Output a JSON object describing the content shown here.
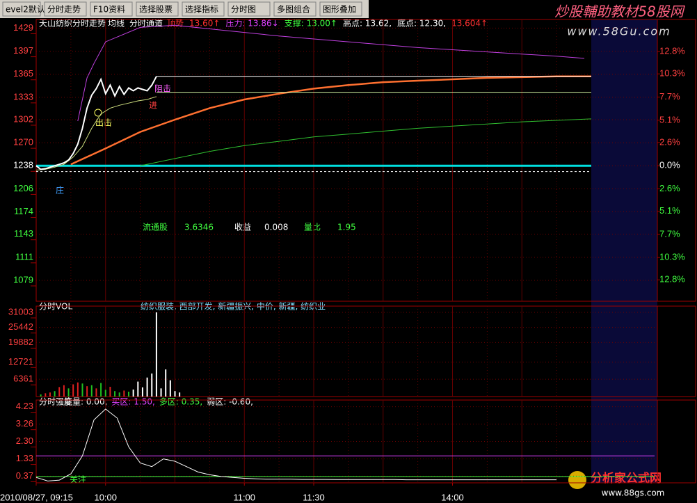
{
  "toolbar": [
    "evel2默认",
    "分时走势",
    "F10资料",
    "选择股票",
    "选择指标",
    "分时图",
    "多图组合",
    "图形叠加"
  ],
  "watermark_top": {
    "title": "炒股輔助教材58股网",
    "url": "www.58Gu.com"
  },
  "watermark_bottom": {
    "title": "分析家公式网",
    "url": "www.88gs.com"
  },
  "info": [
    "流通股",
    "3.6346",
    "收益",
    "0.008",
    "量比",
    "1.95"
  ],
  "annotations": [
    "庄",
    "出击",
    "阻击",
    "进",
    "关注"
  ],
  "chart_data": [
    {
      "type": "line",
      "title": "天山纺织分时走势",
      "legend": [
        "均线",
        "分时通道"
      ],
      "stats": [
        {
          "text": "顶势",
          "color": "#ff3030"
        },
        {
          "text": "13.60↑",
          "color": "#ff3030"
        },
        {
          "text": "压力: 13.86↓",
          "color": "#e040ff"
        },
        {
          "text": "支撑: 13.00↑",
          "color": "#40ff40"
        },
        {
          "text": "高点: 13.62,",
          "color": "#ffffff"
        },
        {
          "text": "底点: 12.30,",
          "color": "#ffffff"
        },
        {
          "text": "13.604↑",
          "color": "#ff3030"
        }
      ],
      "xlim": [
        0,
        240
      ],
      "ylim": [
        1050,
        1441
      ],
      "yticks": [
        1429,
        1397,
        1365,
        1333,
        1302,
        1270,
        1238,
        1206,
        1174,
        1143,
        1111,
        1079
      ],
      "y2lim": [
        -15.2,
        16.4
      ],
      "y2ticks": [
        {
          "value": 12.8,
          "label": "12.8%"
        },
        {
          "value": 10.3,
          "label": "10.3%"
        },
        {
          "value": 7.7,
          "label": "7.7%"
        },
        {
          "value": 5.1,
          "label": "5.1%"
        },
        {
          "value": 2.6,
          "label": "2.6%"
        },
        {
          "value": 0,
          "label": "0.0%"
        },
        {
          "value": -2.6,
          "label": "2.6%"
        },
        {
          "value": -5.1,
          "label": "5.1%"
        },
        {
          "value": -7.7,
          "label": "7.7%"
        },
        {
          "value": -10.3,
          "label": "10.3%"
        },
        {
          "value": -12.8,
          "label": "12.8%"
        }
      ],
      "series": [
        {
          "color": "#00e0e0",
          "width": 3,
          "x": [
            0,
            240
          ],
          "values": [
            1238,
            1238
          ]
        },
        {
          "color": "#ffffff",
          "dash": true,
          "x": [
            0,
            240
          ],
          "values": [
            1230,
            1230
          ]
        },
        {
          "color": "#c040e0",
          "x": [
            18,
            22,
            25,
            30,
            45,
            60,
            75,
            90,
            105,
            120,
            135,
            150,
            165,
            180,
            195,
            210,
            225,
            237
          ],
          "values": [
            1300,
            1360,
            1380,
            1410,
            1430,
            1433,
            1428,
            1423,
            1418,
            1414,
            1410,
            1406,
            1402,
            1399,
            1396,
            1393,
            1390,
            1387
          ]
        },
        {
          "color": "#ff7030",
          "width": 2.5,
          "x": [
            15,
            30,
            45,
            60,
            75,
            90,
            105,
            120,
            135,
            150,
            165,
            180,
            195,
            210,
            225,
            240
          ],
          "values": [
            1240,
            1262,
            1285,
            1302,
            1318,
            1330,
            1338,
            1345,
            1350,
            1354,
            1356,
            1358,
            1360,
            1361,
            1362,
            1362
          ]
        },
        {
          "color": "#30c030",
          "x": [
            45,
            60,
            75,
            90,
            105,
            120,
            135,
            150,
            165,
            180,
            195,
            210,
            225,
            240
          ],
          "values": [
            1238,
            1248,
            1258,
            1266,
            1272,
            1278,
            1282,
            1286,
            1290,
            1293,
            1296,
            1299,
            1301,
            1303
          ]
        },
        {
          "color": "#ffffff",
          "x": [
            52,
            240
          ],
          "values": [
            1362,
            1362
          ]
        },
        {
          "color": "#d0f0a0",
          "x": [
            52,
            240
          ],
          "values": [
            1340,
            1340
          ]
        },
        {
          "color": "#d0e080",
          "x": [
            0,
            4,
            8,
            12,
            16,
            20,
            24,
            28,
            32,
            36,
            40,
            44,
            48,
            52
          ],
          "values": [
            1232,
            1233,
            1236,
            1240,
            1250,
            1265,
            1290,
            1310,
            1318,
            1322,
            1325,
            1328,
            1330,
            1334
          ]
        },
        {
          "color": "#ffffff",
          "width": 2,
          "x": [
            0,
            2,
            4,
            6,
            8,
            10,
            12,
            14,
            16,
            18,
            20,
            22,
            24,
            26,
            28,
            30,
            32,
            34,
            36,
            38,
            40,
            42,
            44,
            46,
            48,
            50,
            52
          ],
          "values": [
            1238,
            1233,
            1234,
            1236,
            1238,
            1240,
            1242,
            1246,
            1255,
            1268,
            1290,
            1318,
            1336,
            1345,
            1358,
            1338,
            1350,
            1335,
            1348,
            1337,
            1346,
            1342,
            1346,
            1344,
            1342,
            1350,
            1362
          ]
        }
      ]
    },
    {
      "type": "bar",
      "title": "分时VOL",
      "note": "纺织服装, 西部开发, 新疆振兴, 中价, 新疆, 纺织业",
      "xlim": [
        0,
        240
      ],
      "ylim": [
        0,
        33300
      ],
      "yticks": [
        31003,
        25442,
        19882,
        12721,
        6361
      ],
      "x": [
        0,
        2,
        4,
        6,
        8,
        10,
        12,
        14,
        16,
        18,
        20,
        22,
        24,
        26,
        28,
        30,
        32,
        34,
        36,
        38,
        40,
        42,
        44,
        46,
        48,
        50,
        52,
        54,
        56,
        58,
        60,
        62
      ],
      "values": [
        0,
        800,
        1200,
        1500,
        2000,
        3500,
        4200,
        3000,
        4500,
        5200,
        4800,
        3800,
        4200,
        3000,
        5000,
        2500,
        3600,
        2000,
        1500,
        2200,
        1800,
        2600,
        5500,
        3400,
        7000,
        8500,
        31000,
        3000,
        10000,
        6000,
        2000,
        1500
      ],
      "bar_colors": [
        "#e02020",
        "#20c020",
        "#e02020",
        "#e02020",
        "#20c020",
        "#e02020",
        "#e02020",
        "#20c020",
        "#e02020",
        "#e02020",
        "#20c020",
        "#e02020",
        "#20c020",
        "#e02020",
        "#20c020",
        "#20c020",
        "#e02020",
        "#20c020",
        "#20c020",
        "#e02020",
        "#20c020",
        "#ffffff",
        "#ffffff",
        "#ffffff",
        "#ffffff",
        "#ffffff",
        "#ffffff",
        "#ffffff",
        "#ffffff",
        "#ffffff",
        "#ffffff",
        "#ffffff"
      ]
    },
    {
      "type": "line",
      "title": "分时强度",
      "indicators": [
        {
          "text": "能量: 0.00,",
          "color": "#ffffff"
        },
        {
          "text": "买区: 1.50,",
          "color": "#e040ff",
          "value": 1.5
        },
        {
          "text": "多区: 0.35,",
          "color": "#40ff40",
          "value": 0.35
        },
        {
          "text": "弱区: -0.60,",
          "color": "#ffffff"
        }
      ],
      "xlim": [
        0,
        240
      ],
      "ylim": [
        0,
        4.6
      ],
      "yticks": [
        {
          "value": 4.23,
          "label": "4.23"
        },
        {
          "value": 3.26,
          "label": "3.26"
        },
        {
          "value": 2.3,
          "label": "2.30"
        },
        {
          "value": 1.33,
          "label": "1.33"
        },
        {
          "value": 0.37,
          "label": "0.37"
        }
      ],
      "xticks": [
        {
          "value": 0,
          "label": "2010/08/27, 09:15"
        },
        {
          "value": 30,
          "label": "10:00"
        },
        {
          "value": 90,
          "label": "11:00"
        },
        {
          "value": 120,
          "label": "11:30"
        },
        {
          "value": 180,
          "label": "14:00"
        }
      ],
      "series": [
        {
          "color": "#ffffff",
          "x": [
            0,
            5,
            10,
            15,
            20,
            25,
            30,
            35,
            40,
            45,
            50,
            55,
            60,
            65,
            70,
            75,
            80,
            85,
            90,
            95,
            100,
            105,
            110,
            115,
            120,
            125,
            130,
            135,
            140,
            145,
            150,
            155,
            160,
            165,
            170,
            175,
            180,
            185,
            190,
            195,
            200,
            205,
            210,
            215,
            220,
            225
          ],
          "values": [
            0.3,
            0.1,
            0.15,
            0.5,
            1.5,
            3.5,
            4.1,
            3.6,
            2.0,
            1.1,
            0.9,
            1.33,
            1.2,
            0.9,
            0.6,
            0.45,
            0.35,
            0.3,
            0.25,
            0.22,
            0.2,
            0.2,
            0.2,
            0.19,
            0.19,
            0.19,
            0.18,
            0.18,
            0.18,
            0.18,
            0.18,
            0.18,
            0.17,
            0.17,
            0.17,
            0.17,
            0.17,
            0.17,
            0.17,
            0.17,
            0.17,
            0.17,
            0.17,
            0.17,
            0.17,
            0.17
          ]
        }
      ]
    }
  ]
}
